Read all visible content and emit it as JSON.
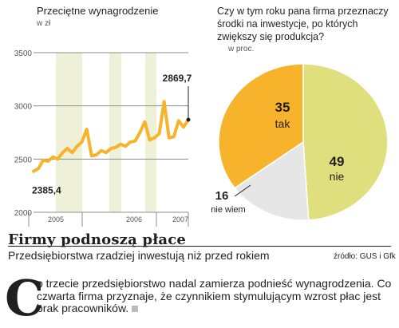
{
  "line_chart": {
    "title": "Przeciętne wynagrodzenie",
    "unit": "w zł",
    "y_ticks": [
      "3500",
      "3000",
      "2500",
      "2000"
    ],
    "year_labels": [
      "2005",
      "2006",
      "2007"
    ],
    "start_label": "2385,4",
    "end_label": "2869,7",
    "colors": {
      "line": "#f7b32b",
      "shade": "#eef1d8",
      "grid": "#8c8c8c"
    }
  },
  "pie_chart": {
    "question": "Czy w tym roku pana firma przeznaczy środki na inwestycje, po których zwiększy się produkcja?",
    "unit": "w proc.",
    "slices": [
      {
        "value": "35",
        "label": "tak",
        "color": "#f7b32b"
      },
      {
        "value": "49",
        "label": "nie",
        "color": "#dfe07d"
      },
      {
        "value": "16",
        "label": "nie wiem",
        "color": "#e6e6e6"
      }
    ]
  },
  "article": {
    "headline": "Firmy podnoszą płace",
    "subheadline": "Przedsiębiorstwa rzadziej inwestują niż przed rokiem",
    "source": "źródło: GUS i Gfk",
    "dropcap": "C",
    "body": "o trzecie przedsiębiorstwo nadal zamierza podnieść wynagrodzenia. Co czwarta firma przyznaje, że czynnikiem stymulującym wzrost płac jest brak pracowników."
  },
  "chart_data": [
    {
      "type": "line",
      "title": "Przeciętne wynagrodzenie",
      "ylabel": "w zł",
      "ylim": [
        2000,
        3500
      ],
      "y_ticks": [
        2000,
        2500,
        3000,
        3500
      ],
      "x_ticks": [
        "2005",
        "2006",
        "2007"
      ],
      "grid": true,
      "series": [
        {
          "values": [
            2385.4,
            2410,
            2490,
            2480,
            2520,
            2500,
            2560,
            2600,
            2560,
            2620,
            2660,
            2780,
            2530,
            2540,
            2580,
            2560,
            2600,
            2610,
            2640,
            2620,
            2660,
            2670,
            2750,
            2850,
            2680,
            2700,
            2740,
            3040,
            2700,
            2710,
            2860,
            2800,
            2869.7
          ]
        }
      ]
    },
    {
      "type": "pie",
      "title": "Czy w tym roku pana firma przeznaczy środki na inwestycje, po których zwiększy się produkcja?",
      "ylabel": "w proc.",
      "categories": [
        "tak",
        "nie",
        "nie wiem"
      ],
      "values": [
        35,
        49,
        16
      ]
    }
  ]
}
